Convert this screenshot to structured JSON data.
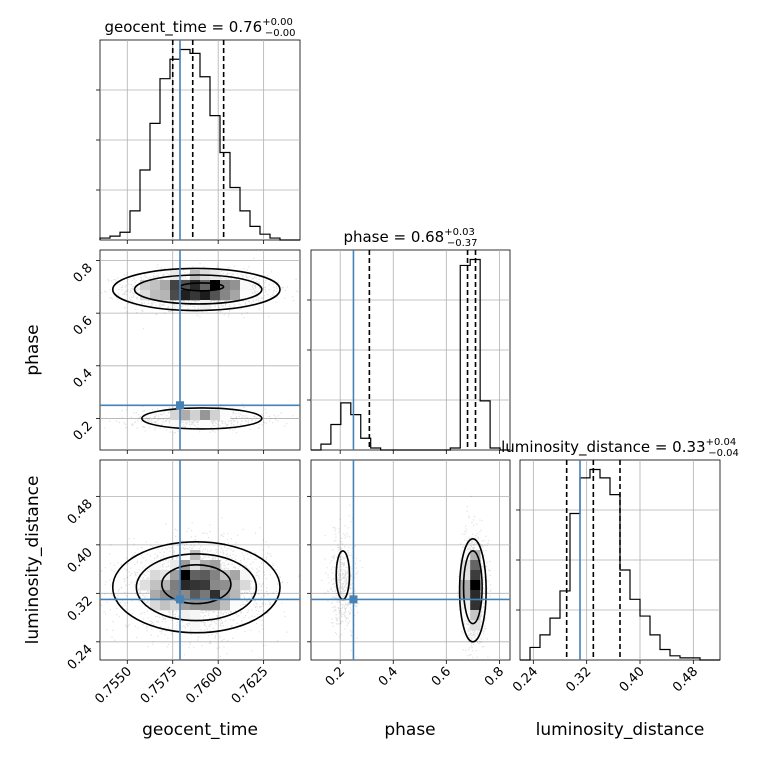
{
  "chart_data": {
    "type": "corner",
    "parameters": [
      "geocent_time",
      "phase",
      "luminosity_distance"
    ],
    "truth": {
      "geocent_time": 0.7579,
      "phase": 0.25,
      "luminosity_distance": 0.31
    },
    "grid": true,
    "panels": {
      "geocent_time": {
        "title": {
          "base": "geocent_time = 0.76",
          "sup": "+0.00",
          "sub": "−0.00"
        },
        "xlim": [
          0.7535,
          0.7645
        ],
        "xticks": [
          0.755,
          0.7575,
          0.76,
          0.7625
        ],
        "xtick_labels": [
          "0.7550",
          "0.7575",
          "0.7600",
          "0.7625"
        ],
        "quantiles": [
          0.7575,
          0.7586,
          0.7603
        ],
        "hist_edges": [
          0.7535,
          0.75405,
          0.7546,
          0.75515,
          0.7557,
          0.75625,
          0.7568,
          0.75735,
          0.7579,
          0.75845,
          0.759,
          0.75955,
          0.7601,
          0.76065,
          0.7612,
          0.76175,
          0.7623,
          0.76285,
          0.7634,
          0.76395,
          0.7645
        ],
        "hist_values": [
          0.01,
          0.02,
          0.04,
          0.15,
          0.36,
          0.6,
          0.83,
          0.93,
          0.98,
          0.96,
          0.84,
          0.64,
          0.45,
          0.27,
          0.15,
          0.07,
          0.03,
          0.01,
          0,
          0
        ]
      },
      "phase": {
        "title": {
          "base": "phase = 0.68",
          "sup": "+0.03",
          "sub": "−0.37"
        },
        "xlim": [
          0.09,
          0.84
        ],
        "xticks": [
          0.2,
          0.4,
          0.6,
          0.8
        ],
        "xtick_labels": [
          "0.2",
          "0.4",
          "0.6",
          "0.8"
        ],
        "quantiles": [
          0.31,
          0.68,
          0.71
        ],
        "hist_edges": [
          0.09,
          0.1275,
          0.165,
          0.2025,
          0.24,
          0.2775,
          0.315,
          0.3525,
          0.39,
          0.4275,
          0.465,
          0.5025,
          0.54,
          0.5775,
          0.615,
          0.6525,
          0.69,
          0.7275,
          0.765,
          0.8025,
          0.84
        ],
        "hist_values": [
          0,
          0.03,
          0.13,
          0.24,
          0.18,
          0.06,
          0.01,
          0,
          0,
          0,
          0,
          0,
          0,
          0,
          0.01,
          0.94,
          0.97,
          0.25,
          0.01,
          0
        ]
      },
      "luminosity_distance": {
        "title": {
          "base": "luminosity_distance = 0.33",
          "sup": "+0.04",
          "sub": "−0.04"
        },
        "xlim": [
          0.22,
          0.52
        ],
        "xticks": [
          0.24,
          0.32,
          0.4,
          0.48
        ],
        "xtick_labels": [
          "0.24",
          "0.32",
          "0.40",
          "0.48"
        ],
        "quantiles": [
          0.29,
          0.33,
          0.37
        ],
        "hist_edges": [
          0.22,
          0.235,
          0.25,
          0.265,
          0.28,
          0.295,
          0.31,
          0.325,
          0.34,
          0.355,
          0.37,
          0.385,
          0.4,
          0.415,
          0.43,
          0.445,
          0.46,
          0.475,
          0.49,
          0.505,
          0.52
        ],
        "hist_values": [
          0,
          0.06,
          0.12,
          0.2,
          0.33,
          0.7,
          0.87,
          0.91,
          0.87,
          0.79,
          0.43,
          0.29,
          0.21,
          0.12,
          0.05,
          0.02,
          0.01,
          0.01,
          0,
          0
        ]
      }
    },
    "axis_labels": {
      "geocent_time": "geocent_time",
      "phase": "phase",
      "luminosity_distance": "luminosity_distance"
    },
    "ylims": {
      "phase": [
        0.08,
        0.84
      ],
      "luminosity_distance": [
        0.21,
        0.54
      ]
    },
    "yticks": {
      "phase": {
        "values": [
          0.2,
          0.4,
          0.6,
          0.8
        ],
        "labels": [
          "0.2",
          "0.4",
          "0.6",
          "0.8"
        ]
      },
      "luminosity_distance": {
        "values": [
          0.24,
          0.32,
          0.4,
          0.48
        ],
        "labels": [
          "0.24",
          "0.32",
          "0.40",
          "0.48"
        ]
      }
    },
    "modes_2d": {
      "phase_vs_geocent_time": [
        {
          "x": 0.7588,
          "y": 0.69,
          "sx": 0.0019,
          "sy": 0.035,
          "n": 2000
        },
        {
          "x": 0.7588,
          "y": 0.2,
          "sx": 0.0019,
          "sy": 0.02,
          "n": 600
        }
      ],
      "luminosity_distance_vs_geocent_time": [
        {
          "x": 0.7588,
          "y": 0.33,
          "sx": 0.0019,
          "sy": 0.035,
          "n": 2500
        }
      ],
      "luminosity_distance_vs_phase": [
        {
          "x": 0.7,
          "y": 0.33,
          "sx": 0.02,
          "sy": 0.04,
          "n": 1800
        },
        {
          "x": 0.21,
          "y": 0.34,
          "sx": 0.025,
          "sy": 0.04,
          "n": 500
        }
      ]
    },
    "contours_2d": {
      "phase_vs_geocent_time": [
        [
          {
            "cx": 0.7588,
            "cy": 0.69,
            "rx": 0.0046,
            "ry": 0.08
          },
          {
            "cx": 0.7589,
            "cy": 0.69,
            "rx": 0.0035,
            "ry": 0.055
          },
          {
            "cx": 0.7591,
            "cy": 0.7,
            "rx": 0.0012,
            "ry": 0.015
          }
        ],
        [
          {
            "cx": 0.7591,
            "cy": 0.2,
            "rx": 0.0033,
            "ry": 0.04
          }
        ]
      ],
      "luminosity_distance_vs_geocent_time": [
        [
          {
            "cx": 0.7588,
            "cy": 0.33,
            "rx": 0.0046,
            "ry": 0.075
          },
          {
            "cx": 0.7588,
            "cy": 0.33,
            "rx": 0.0033,
            "ry": 0.055
          },
          {
            "cx": 0.7588,
            "cy": 0.335,
            "rx": 0.0019,
            "ry": 0.032
          }
        ]
      ],
      "luminosity_distance_vs_phase": [
        [
          {
            "cx": 0.7,
            "cy": 0.325,
            "rx": 0.05,
            "ry": 0.085
          },
          {
            "cx": 0.7,
            "cy": 0.33,
            "rx": 0.035,
            "ry": 0.06
          }
        ],
        [
          {
            "cx": 0.21,
            "cy": 0.35,
            "rx": 0.025,
            "ry": 0.04
          }
        ]
      ]
    },
    "colors": {
      "truth": "#4682b4",
      "hist": "#000000",
      "grid": "#b0b0b0",
      "points": "#000000",
      "axes": "#000000"
    }
  }
}
